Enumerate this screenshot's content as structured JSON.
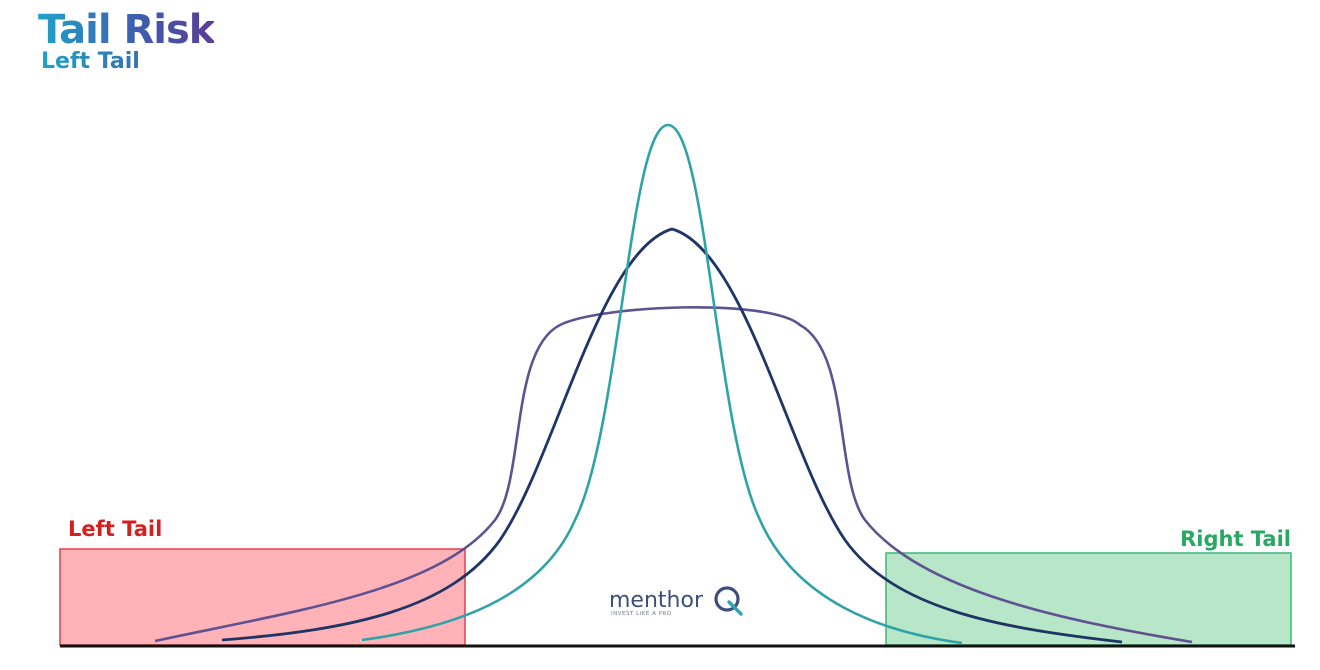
{
  "header": {
    "title": "Tail Risk",
    "subtitle": "Left Tail"
  },
  "tails": {
    "left": {
      "label": "Left Tail",
      "color": "#d41f1f",
      "fill": "#ffb3b8",
      "stroke": "#e0404a"
    },
    "right": {
      "label": "Right Tail",
      "color": "#28a862",
      "fill": "#b8e6c8",
      "stroke": "#3cb878"
    }
  },
  "curves": {
    "tall": {
      "color": "#2ea3a8"
    },
    "medium": {
      "color": "#1f3566"
    },
    "wide": {
      "color": "#5e5290"
    }
  },
  "logo": {
    "word": "menthor",
    "tagline": "INVEST LIKE A PRO",
    "mark": "Q",
    "color": "#3d4f7a",
    "accent": "#2aa6b8"
  },
  "baseline_color": "#111111"
}
